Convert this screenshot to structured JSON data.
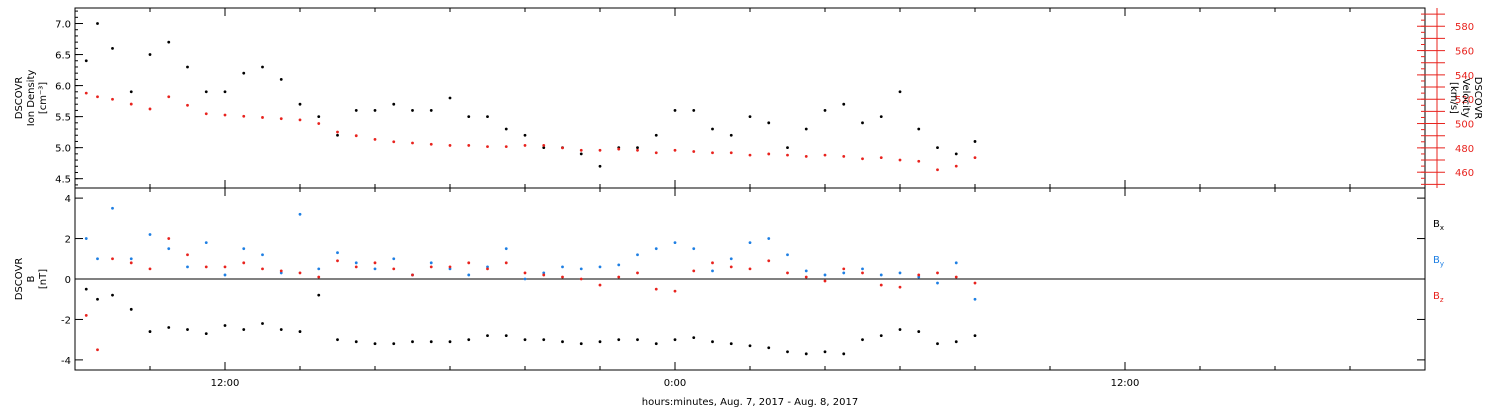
{
  "chart_data": [
    {
      "type": "scatter",
      "panel": "top",
      "ylabel_left": [
        "DSCOVR",
        "Ion Density",
        "[cm⁻³]"
      ],
      "ylabel_right": [
        "DSCOVR",
        "Velocity",
        "[km/s]"
      ],
      "ylim_left": [
        4.35,
        7.25
      ],
      "yticks_left": [
        "4.5",
        "5.0",
        "5.5",
        "6.0",
        "6.5",
        "7.0"
      ],
      "ylim_right": [
        447,
        595
      ],
      "yticks_right": [
        "460",
        "480",
        "500",
        "520",
        "540",
        "560",
        "580"
      ],
      "series": [
        {
          "axis": "left",
          "color": "#000000",
          "x": [
            8.3,
            8.6,
            9.0,
            9.5,
            10.0,
            10.5,
            11.0,
            11.5,
            12.0,
            12.5,
            13.0,
            13.5,
            14.0,
            14.5,
            15.0,
            15.5,
            16.0,
            16.5,
            17.0,
            17.5,
            18.0,
            18.5,
            19.0,
            19.5,
            20.0,
            20.5,
            21.0,
            21.5,
            22.0,
            22.5,
            23.0,
            23.5,
            24.0,
            24.5,
            25.0,
            25.5,
            26.0,
            26.5,
            27.0,
            27.5,
            28.0,
            28.5,
            29.0,
            29.5,
            30.0,
            30.5,
            31.0,
            31.5,
            32.0
          ],
          "y": [
            6.4,
            7.0,
            6.6,
            5.9,
            6.5,
            6.7,
            6.3,
            5.9,
            5.9,
            6.2,
            6.3,
            6.1,
            5.7,
            5.5,
            5.2,
            5.6,
            5.6,
            5.7,
            5.6,
            5.6,
            5.8,
            5.5,
            5.5,
            5.3,
            5.2,
            5.0,
            5.0,
            4.9,
            4.7,
            5.0,
            5.0,
            5.2,
            5.6,
            5.6,
            5.3,
            5.2,
            5.5,
            5.4,
            5.0,
            5.3,
            5.6,
            5.7,
            5.4,
            5.5,
            5.9,
            5.3,
            5.0,
            4.9,
            5.1
          ]
        },
        {
          "axis": "right",
          "color": "#e8231e",
          "x": [
            8.3,
            8.6,
            9.0,
            9.5,
            10.0,
            10.5,
            11.0,
            11.5,
            12.0,
            12.5,
            13.0,
            13.5,
            14.0,
            14.5,
            15.0,
            15.5,
            16.0,
            16.5,
            17.0,
            17.5,
            18.0,
            18.5,
            19.0,
            19.5,
            20.0,
            20.5,
            21.0,
            21.5,
            22.0,
            22.5,
            23.0,
            23.5,
            24.0,
            24.5,
            25.0,
            25.5,
            26.0,
            26.5,
            27.0,
            27.5,
            28.0,
            28.5,
            29.0,
            29.5,
            30.0,
            30.5,
            31.0,
            31.5,
            32.0
          ],
          "y": [
            525,
            522,
            520,
            516,
            512,
            522,
            515,
            508,
            507,
            506,
            505,
            504,
            503,
            500,
            493,
            490,
            487,
            485,
            484,
            483,
            482,
            482,
            481,
            481,
            482,
            482,
            480,
            478,
            478,
            479,
            478,
            476,
            478,
            477,
            476,
            476,
            474,
            475,
            474,
            473,
            474,
            473,
            471,
            472,
            470,
            469,
            462,
            465,
            472
          ]
        }
      ]
    },
    {
      "type": "scatter",
      "panel": "bottom",
      "ylabel": [
        "DSCOVR",
        "B",
        "[nT]"
      ],
      "ylim": [
        -4.5,
        4.5
      ],
      "yticks": [
        "-4",
        "-2",
        "0",
        "2",
        "4"
      ],
      "zero_line": true,
      "legend": [
        {
          "label": "B",
          "sub": "x",
          "color": "#000000"
        },
        {
          "label": "B",
          "sub": "y",
          "color": "#1e7fe3"
        },
        {
          "label": "B",
          "sub": "z",
          "color": "#e8231e"
        }
      ],
      "series": [
        {
          "name": "Bx",
          "color": "#000000",
          "x": [
            8.3,
            8.6,
            9.0,
            9.5,
            10.0,
            10.5,
            11.0,
            11.5,
            12.0,
            12.5,
            13.0,
            13.5,
            14.0,
            14.5,
            15.0,
            15.5,
            16.0,
            16.5,
            17.0,
            17.5,
            18.0,
            18.5,
            19.0,
            19.5,
            20.0,
            20.5,
            21.0,
            21.5,
            22.0,
            22.5,
            23.0,
            23.5,
            24.0,
            24.5,
            25.0,
            25.5,
            26.0,
            26.5,
            27.0,
            27.5,
            28.0,
            28.5,
            29.0,
            29.5,
            30.0,
            30.5,
            31.0,
            31.5,
            32.0
          ],
          "y": [
            -0.5,
            -1.0,
            -0.8,
            -1.5,
            -2.6,
            -2.4,
            -2.5,
            -2.7,
            -2.3,
            -2.5,
            -2.2,
            -2.5,
            -2.6,
            -0.8,
            -3.0,
            -3.1,
            -3.2,
            -3.2,
            -3.1,
            -3.1,
            -3.1,
            -3.0,
            -2.8,
            -2.8,
            -3.0,
            -3.0,
            -3.1,
            -3.2,
            -3.1,
            -3.0,
            -3.0,
            -3.2,
            -3.0,
            -2.9,
            -3.1,
            -3.2,
            -3.3,
            -3.4,
            -3.6,
            -3.7,
            -3.6,
            -3.7,
            -3.0,
            -2.8,
            -2.5,
            -2.6,
            -3.2,
            -3.1,
            -2.8
          ]
        },
        {
          "name": "By",
          "color": "#1e7fe3",
          "x": [
            8.3,
            8.6,
            9.0,
            9.5,
            10.0,
            10.5,
            11.0,
            11.5,
            12.0,
            12.5,
            13.0,
            13.5,
            14.0,
            14.5,
            15.0,
            15.5,
            16.0,
            16.5,
            17.0,
            17.5,
            18.0,
            18.5,
            19.0,
            19.5,
            20.0,
            20.5,
            21.0,
            21.5,
            22.0,
            22.5,
            23.0,
            23.5,
            24.0,
            24.5,
            25.0,
            25.5,
            26.0,
            26.5,
            27.0,
            27.5,
            28.0,
            28.5,
            29.0,
            29.5,
            30.0,
            30.5,
            31.0,
            31.5,
            32.0
          ],
          "y": [
            2.0,
            1.0,
            3.5,
            1.0,
            2.2,
            1.5,
            0.6,
            1.8,
            0.2,
            1.5,
            1.2,
            0.3,
            3.2,
            0.5,
            1.3,
            0.8,
            0.5,
            1.0,
            0.2,
            0.8,
            0.5,
            0.2,
            0.6,
            1.5,
            0.0,
            0.3,
            0.6,
            0.5,
            0.6,
            0.7,
            1.2,
            1.5,
            1.8,
            1.5,
            0.4,
            1.0,
            1.8,
            2.0,
            1.2,
            0.4,
            0.2,
            0.3,
            0.5,
            0.2,
            0.3,
            0.1,
            -0.2,
            0.8,
            -1.0
          ]
        },
        {
          "name": "Bz",
          "color": "#e8231e",
          "x": [
            8.3,
            8.6,
            9.0,
            9.5,
            10.0,
            10.5,
            11.0,
            11.5,
            12.0,
            12.5,
            13.0,
            13.5,
            14.0,
            14.5,
            15.0,
            15.5,
            16.0,
            16.5,
            17.0,
            17.5,
            18.0,
            18.5,
            19.0,
            19.5,
            20.0,
            20.5,
            21.0,
            21.5,
            22.0,
            22.5,
            23.0,
            23.5,
            24.0,
            24.5,
            25.0,
            25.5,
            26.0,
            26.5,
            27.0,
            27.5,
            28.0,
            28.5,
            29.0,
            29.5,
            30.0,
            30.5,
            31.0,
            31.5,
            32.0
          ],
          "y": [
            -1.8,
            -3.5,
            1.0,
            0.8,
            0.5,
            2.0,
            1.2,
            0.6,
            0.6,
            0.8,
            0.5,
            0.4,
            0.3,
            0.1,
            0.9,
            0.6,
            0.8,
            0.5,
            0.2,
            0.6,
            0.6,
            0.8,
            0.5,
            0.8,
            0.3,
            0.2,
            0.1,
            0.0,
            -0.3,
            0.1,
            0.3,
            -0.5,
            -0.6,
            0.4,
            0.8,
            0.6,
            0.5,
            0.9,
            0.3,
            0.1,
            -0.1,
            0.5,
            0.3,
            -0.3,
            -0.4,
            0.2,
            0.3,
            0.1,
            -0.2
          ]
        }
      ]
    }
  ],
  "x_axis": {
    "range": [
      8,
      44
    ],
    "ticks": [
      {
        "x": 12,
        "label": "12:00"
      },
      {
        "x": 24,
        "label": "0:00"
      },
      {
        "x": 36,
        "label": "12:00"
      }
    ],
    "minor_step": 2,
    "xlabel": "hours:minutes, Aug.  7, 2017 - Aug.  8, 2017"
  }
}
